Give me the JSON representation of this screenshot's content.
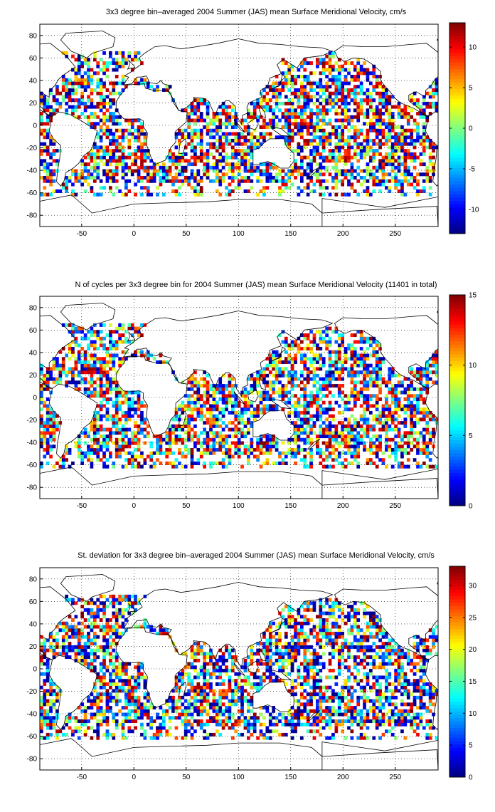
{
  "chart_data": [
    {
      "type": "heatmap",
      "title": "3x3 degree bin–averaged 2004 Summer (JAS) mean Surface Meridional Velocity, cm/s",
      "xlabel": "",
      "ylabel": "",
      "xlim": [
        -90,
        291
      ],
      "ylim": [
        -90,
        90
      ],
      "xticks": [
        -50,
        0,
        50,
        100,
        150,
        200,
        250
      ],
      "yticks": [
        -80,
        -60,
        -40,
        -20,
        0,
        20,
        40,
        60,
        80
      ],
      "grid": true,
      "colormap": "jet",
      "clim": [
        -13,
        13
      ],
      "colorbar_ticks": [
        -10,
        -5,
        0,
        5,
        10
      ],
      "seed": 11
    },
    {
      "type": "heatmap",
      "title": "N of cycles per 3x3 degree bin for 2004 Summer (JAS) mean Surface Meridional Velocity (11401 in total)",
      "xlabel": "",
      "ylabel": "",
      "xlim": [
        -90,
        291
      ],
      "ylim": [
        -90,
        90
      ],
      "xticks": [
        -50,
        0,
        50,
        100,
        150,
        200,
        250
      ],
      "yticks": [
        -80,
        -60,
        -40,
        -20,
        0,
        20,
        40,
        60,
        80
      ],
      "grid": true,
      "colormap": "jet",
      "clim": [
        0,
        15
      ],
      "colorbar_ticks": [
        0,
        5,
        10,
        15
      ],
      "seed": 23
    },
    {
      "type": "heatmap",
      "title": "St. deviation for 3x3 degree bin–averaged 2004 Summer (JAS) mean Surface Meridional Velocity, cm/s",
      "xlabel": "",
      "ylabel": "",
      "xlim": [
        -90,
        291
      ],
      "ylim": [
        -90,
        90
      ],
      "xticks": [
        -50,
        0,
        50,
        100,
        150,
        200,
        250
      ],
      "yticks": [
        -80,
        -60,
        -40,
        -20,
        0,
        20,
        40,
        60,
        80
      ],
      "grid": true,
      "colormap": "jet",
      "clim": [
        0,
        33
      ],
      "colorbar_ticks": [
        0,
        5,
        10,
        15,
        20,
        25,
        30
      ],
      "seed": 37
    }
  ]
}
